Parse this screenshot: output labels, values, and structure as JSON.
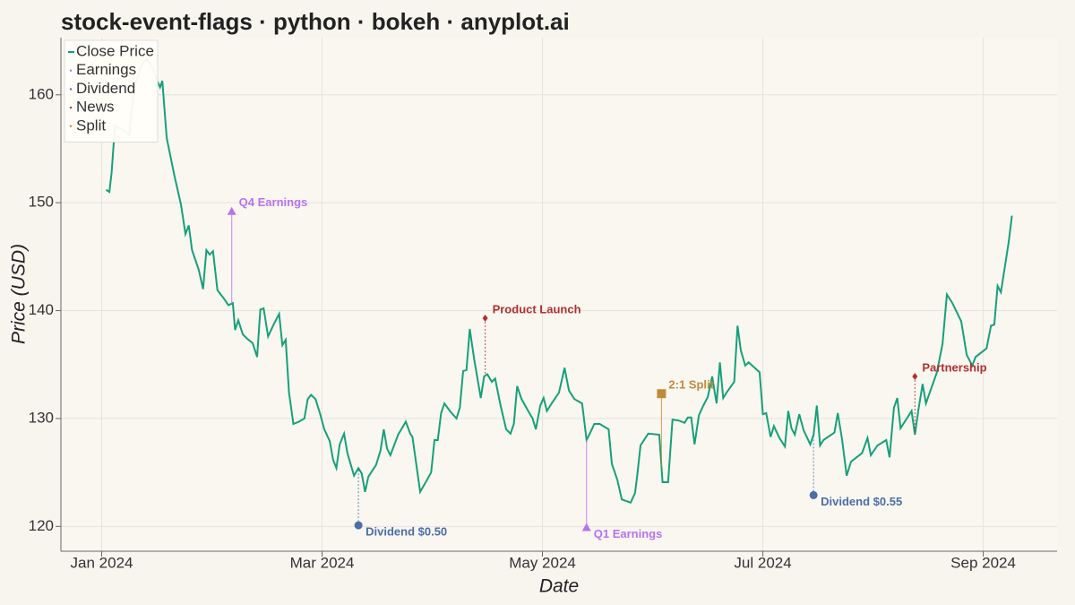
{
  "chart_data": {
    "type": "line",
    "title": "stock-event-flags · python · bokeh · anyplot.ai",
    "x_label": "Date",
    "y_label": "Price (USD)",
    "xlim": [
      -0.37,
      8.67
    ],
    "ylim": [
      117.7,
      165.3
    ],
    "xticks": [
      {
        "value": 0,
        "label": "Jan 2024"
      },
      {
        "value": 2,
        "label": "Mar 2024"
      },
      {
        "value": 4,
        "label": "May 2024"
      },
      {
        "value": 6,
        "label": "Jul 2024"
      },
      {
        "value": 8,
        "label": "Sep 2024"
      }
    ],
    "yticks": [
      120,
      130,
      140,
      150,
      160
    ],
    "grid": true,
    "legend": "top-left",
    "series": [
      {
        "name": "Close Price",
        "color": "#16a07a",
        "marker": "line",
        "x": [
          0.04,
          0.07,
          0.09,
          0.12,
          0.2,
          0.25,
          0.29,
          0.36,
          0.41,
          0.46,
          0.5,
          0.53,
          0.55,
          0.59,
          0.66,
          0.72,
          0.76,
          0.79,
          0.82,
          0.88,
          0.92,
          0.95,
          0.98,
          1.01,
          1.05,
          1.11,
          1.15,
          1.19,
          1.21,
          1.24,
          1.28,
          1.32,
          1.37,
          1.41,
          1.44,
          1.47,
          1.51,
          1.56,
          1.61,
          1.64,
          1.67,
          1.7,
          1.74,
          1.79,
          1.84,
          1.87,
          1.9,
          1.94,
          1.98,
          2.02,
          2.07,
          2.1,
          2.13,
          2.16,
          2.2,
          2.23,
          2.29,
          2.33,
          2.36,
          2.39,
          2.42,
          2.49,
          2.53,
          2.56,
          2.59,
          2.62,
          2.69,
          2.76,
          2.8,
          2.82,
          2.89,
          2.94,
          2.99,
          3.02,
          3.05,
          3.08,
          3.11,
          3.16,
          3.22,
          3.25,
          3.28,
          3.31,
          3.34,
          3.38,
          3.44,
          3.47,
          3.5,
          3.54,
          3.57,
          3.62,
          3.67,
          3.71,
          3.74,
          3.77,
          3.81,
          3.87,
          3.91,
          3.94,
          3.98,
          4.01,
          4.04,
          4.09,
          4.15,
          4.2,
          4.24,
          4.29,
          4.36,
          4.4,
          4.43,
          4.47,
          4.52,
          4.6,
          4.63,
          4.68,
          4.72,
          4.8,
          4.84,
          4.86,
          4.89,
          4.96,
          5.06,
          5.09,
          5.14,
          5.18,
          5.24,
          5.29,
          5.32,
          5.35,
          5.38,
          5.42,
          5.46,
          5.5,
          5.54,
          5.58,
          5.61,
          5.64,
          5.67,
          5.74,
          5.77,
          5.8,
          5.84,
          5.87,
          5.97,
          6.0,
          6.03,
          6.07,
          6.1,
          6.15,
          6.2,
          6.23,
          6.26,
          6.29,
          6.33,
          6.37,
          6.43,
          6.46,
          6.49,
          6.52,
          6.55,
          6.65,
          6.68,
          6.72,
          6.76,
          6.8,
          6.9,
          6.95,
          6.98,
          7.04,
          7.12,
          7.15,
          7.19,
          7.22,
          7.25,
          7.35,
          7.38,
          7.41,
          7.45,
          7.48,
          7.58,
          7.63,
          7.67,
          7.72,
          7.8,
          7.85,
          7.9,
          7.93,
          8.03,
          8.07,
          8.1,
          8.13,
          8.16,
          8.23,
          8.26
        ],
        "values": [
          151.2,
          151.0,
          152.8,
          157.1,
          156.7,
          156.3,
          160.4,
          162.7,
          163.3,
          162.5,
          161.4,
          160.7,
          161.3,
          156.0,
          152.5,
          149.8,
          147.1,
          147.9,
          145.6,
          143.8,
          142.0,
          145.6,
          145.2,
          145.5,
          141.9,
          141.1,
          140.5,
          140.7,
          138.2,
          139.1,
          137.8,
          137.4,
          137.0,
          135.7,
          140.1,
          140.2,
          137.6,
          138.7,
          139.7,
          136.8,
          137.3,
          132.4,
          129.5,
          129.7,
          130.0,
          131.8,
          132.2,
          131.8,
          130.5,
          129.0,
          127.9,
          126.2,
          125.4,
          127.6,
          128.6,
          126.8,
          124.7,
          125.4,
          124.9,
          123.2,
          124.6,
          125.7,
          127.0,
          129.0,
          127.2,
          126.6,
          128.5,
          129.7,
          128.6,
          128.3,
          123.2,
          124.1,
          125.0,
          128.0,
          128.0,
          130.5,
          131.4,
          130.7,
          130.0,
          131.0,
          134.4,
          134.5,
          138.3,
          135.5,
          131.9,
          133.9,
          134.1,
          133.4,
          133.7,
          131.2,
          129.0,
          128.6,
          129.5,
          133.0,
          131.8,
          130.7,
          130.0,
          129.0,
          131.2,
          131.9,
          130.7,
          131.5,
          132.4,
          134.7,
          132.6,
          131.8,
          131.4,
          128.0,
          128.6,
          129.5,
          129.5,
          129.0,
          125.8,
          124.3,
          122.5,
          122.2,
          123.1,
          124.7,
          127.5,
          128.6,
          128.5,
          124.1,
          124.1,
          129.9,
          129.8,
          129.6,
          130.1,
          130.1,
          127.6,
          130.3,
          131.2,
          132.0,
          133.9,
          131.4,
          135.2,
          131.9,
          132.4,
          133.4,
          138.6,
          136.3,
          134.9,
          135.2,
          134.3,
          130.4,
          130.5,
          128.3,
          129.3,
          128.2,
          127.4,
          130.7,
          129.1,
          128.5,
          130.4,
          128.9,
          127.6,
          128.5,
          131.2,
          127.5,
          128.0,
          128.7,
          130.5,
          128.0,
          124.7,
          126.0,
          126.8,
          128.2,
          126.6,
          127.5,
          128.0,
          126.4,
          131.0,
          131.9,
          129.1,
          130.7,
          128.5,
          130.7,
          133.2,
          131.4,
          134.3,
          136.9,
          141.5,
          140.7,
          139.0,
          135.9,
          134.9,
          135.7,
          136.5,
          138.6,
          138.7,
          142.3,
          141.7,
          146.3,
          148.8
        ]
      },
      {
        "name": "Earnings",
        "color": "#b872f0",
        "marker": "triangle",
        "stem_dash": false,
        "x": [
          1.18,
          4.4
        ],
        "values": [
          149.2,
          119.9
        ],
        "labels": [
          "Q4 Earnings",
          "Q1 Earnings"
        ]
      },
      {
        "name": "Dividend",
        "color": "#4a6ea8",
        "marker": "circle",
        "stem_dash": true,
        "x": [
          2.33,
          6.46
        ],
        "values": [
          120.1,
          122.9
        ],
        "labels": [
          "Dividend $0.50",
          "Dividend $0.55"
        ]
      },
      {
        "name": "News",
        "color": "#b03030",
        "marker": "diamond",
        "stem_dash": true,
        "x": [
          3.48,
          7.38
        ],
        "values": [
          139.3,
          133.9
        ],
        "labels": [
          "Product Launch",
          "Partnership"
        ]
      },
      {
        "name": "Split",
        "color": "#c08a3a",
        "marker": "square",
        "stem_dash": false,
        "x": [
          5.08
        ],
        "values": [
          132.3
        ],
        "labels": [
          "2:1 Split"
        ]
      }
    ]
  }
}
